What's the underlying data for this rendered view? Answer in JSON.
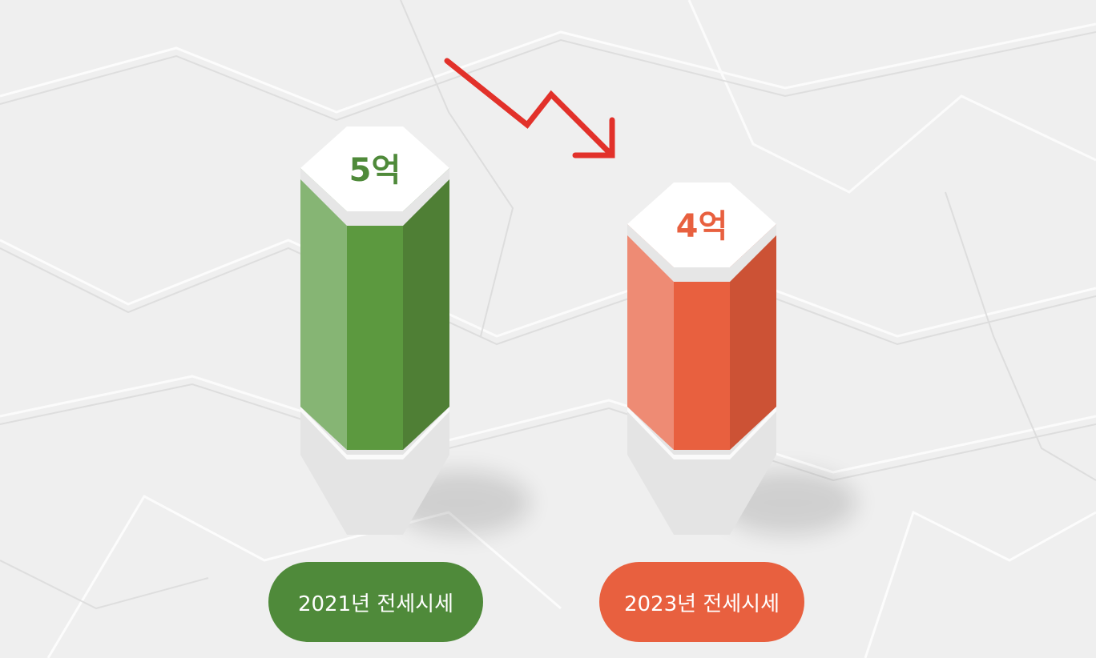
{
  "chart_data": {
    "type": "bar",
    "categories": [
      "2021년 전세시세",
      "2023년 전세시세"
    ],
    "values": [
      5,
      4
    ],
    "value_labels": [
      "5억",
      "4억"
    ],
    "colors": [
      "#4f8a3a",
      "#e8603f"
    ],
    "trend": "down",
    "trend_color": "#e2312a"
  }
}
